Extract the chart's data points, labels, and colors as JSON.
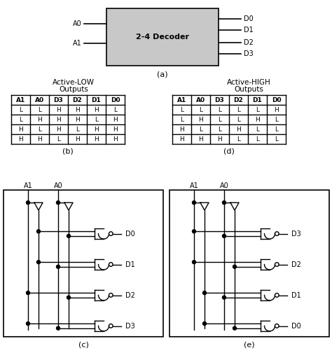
{
  "bg_color": "#ffffff",
  "gray_fill": "#c8c8c8",
  "table_low_active": [
    [
      "A1",
      "A0",
      "D3",
      "D2",
      "D1",
      "D0"
    ],
    [
      "L",
      "L",
      "H",
      "H",
      "H",
      "L"
    ],
    [
      "L",
      "H",
      "H",
      "H",
      "L",
      "H"
    ],
    [
      "H",
      "L",
      "H",
      "L",
      "H",
      "H"
    ],
    [
      "H",
      "H",
      "L",
      "H",
      "H",
      "H"
    ]
  ],
  "table_high_active": [
    [
      "A1",
      "A0",
      "D3",
      "D2",
      "D1",
      "D0"
    ],
    [
      "L",
      "L",
      "L",
      "L",
      "L",
      "H"
    ],
    [
      "L",
      "H",
      "L",
      "L",
      "H",
      "L"
    ],
    [
      "H",
      "L",
      "L",
      "H",
      "L",
      "L"
    ],
    [
      "H",
      "H",
      "H",
      "L",
      "L",
      "L"
    ]
  ],
  "label_a": "(a)",
  "label_b": "(b)",
  "label_c": "(c)",
  "label_d": "(d)",
  "label_e": "(e)",
  "decoder_label": "2-4 Decoder",
  "active_low_title1": "Active-LOW",
  "active_low_title2": "Outputs",
  "active_high_title1": "Active-HIGH",
  "active_high_title2": "Outputs"
}
